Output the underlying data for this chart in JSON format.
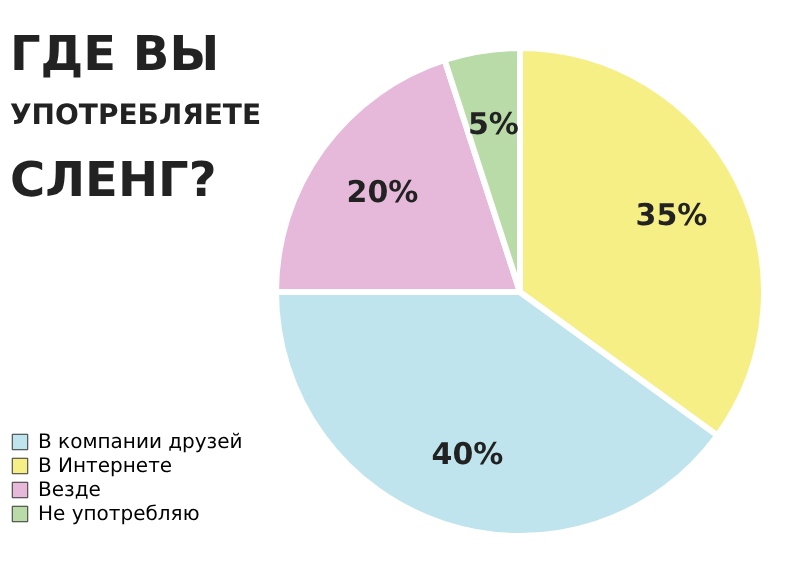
{
  "chart_data": {
    "type": "pie",
    "title": "ГДЕ ВЫ\nУПОТРЕБЛЯЕТЕ\nСЛЕНГ?",
    "categories": [
      "В компании друзей",
      "В Интернете",
      "Везде",
      "Не употребляю"
    ],
    "values": [
      40,
      35,
      20,
      5
    ],
    "colors": [
      "#bfe4ee",
      "#f6ef86",
      "#e6b9da",
      "#b8dba8"
    ],
    "value_labels": [
      "40%",
      "35%",
      "20%",
      "5%"
    ],
    "legend": "bottom left"
  }
}
